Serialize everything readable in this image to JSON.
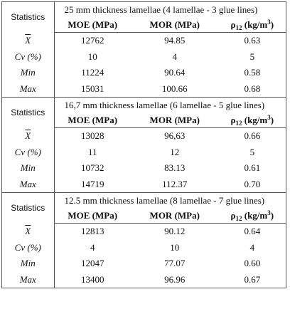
{
  "columns": {
    "stats": "Statistics",
    "moe": "MOE (MPa)",
    "mor": "MOR (MPa)",
    "rho_main": "ρ",
    "rho_sub": "12",
    "rho_unit_open": " (kg/m",
    "rho_sup": "3",
    "rho_unit_close": ")"
  },
  "sections": [
    {
      "title": "25 mm thickness lamellae (4 lamellae - 3 glue lines)",
      "rows": [
        {
          "label": "X",
          "moe": "12762",
          "mor": "94.85",
          "rho": "0.63"
        },
        {
          "label": "Cv (%)",
          "moe": "10",
          "mor": "4",
          "rho": "5"
        },
        {
          "label": "Min",
          "moe": "11224",
          "mor": "90.64",
          "rho": "0.58"
        },
        {
          "label": "Max",
          "moe": "15031",
          "mor": "100.66",
          "rho": "0.68"
        }
      ]
    },
    {
      "title": "16,7 mm thickness lamellae (6 lamellae - 5 glue lines)",
      "rows": [
        {
          "label": "X",
          "moe": "13028",
          "mor": "96,63",
          "rho": "0.66"
        },
        {
          "label": "Cv (%)",
          "moe": "11",
          "mor": "12",
          "rho": "5"
        },
        {
          "label": "Min",
          "moe": "10732",
          "mor": "83.13",
          "rho": "0.61"
        },
        {
          "label": "Max",
          "moe": "14719",
          "mor": "112.37",
          "rho": "0.70"
        }
      ]
    },
    {
      "title": "12.5 mm thickness lamellae (8 lamellae - 7 glue lines)",
      "rows": [
        {
          "label": "X",
          "moe": "12813",
          "mor": "90.12",
          "rho": "0.64"
        },
        {
          "label": "Cv (%)",
          "moe": "4",
          "mor": "10",
          "rho": "4"
        },
        {
          "label": "Min",
          "moe": "12047",
          "mor": "77.07",
          "rho": "0.60"
        },
        {
          "label": "Max",
          "moe": "13400",
          "mor": "96.96",
          "rho": "0.67"
        }
      ]
    }
  ]
}
